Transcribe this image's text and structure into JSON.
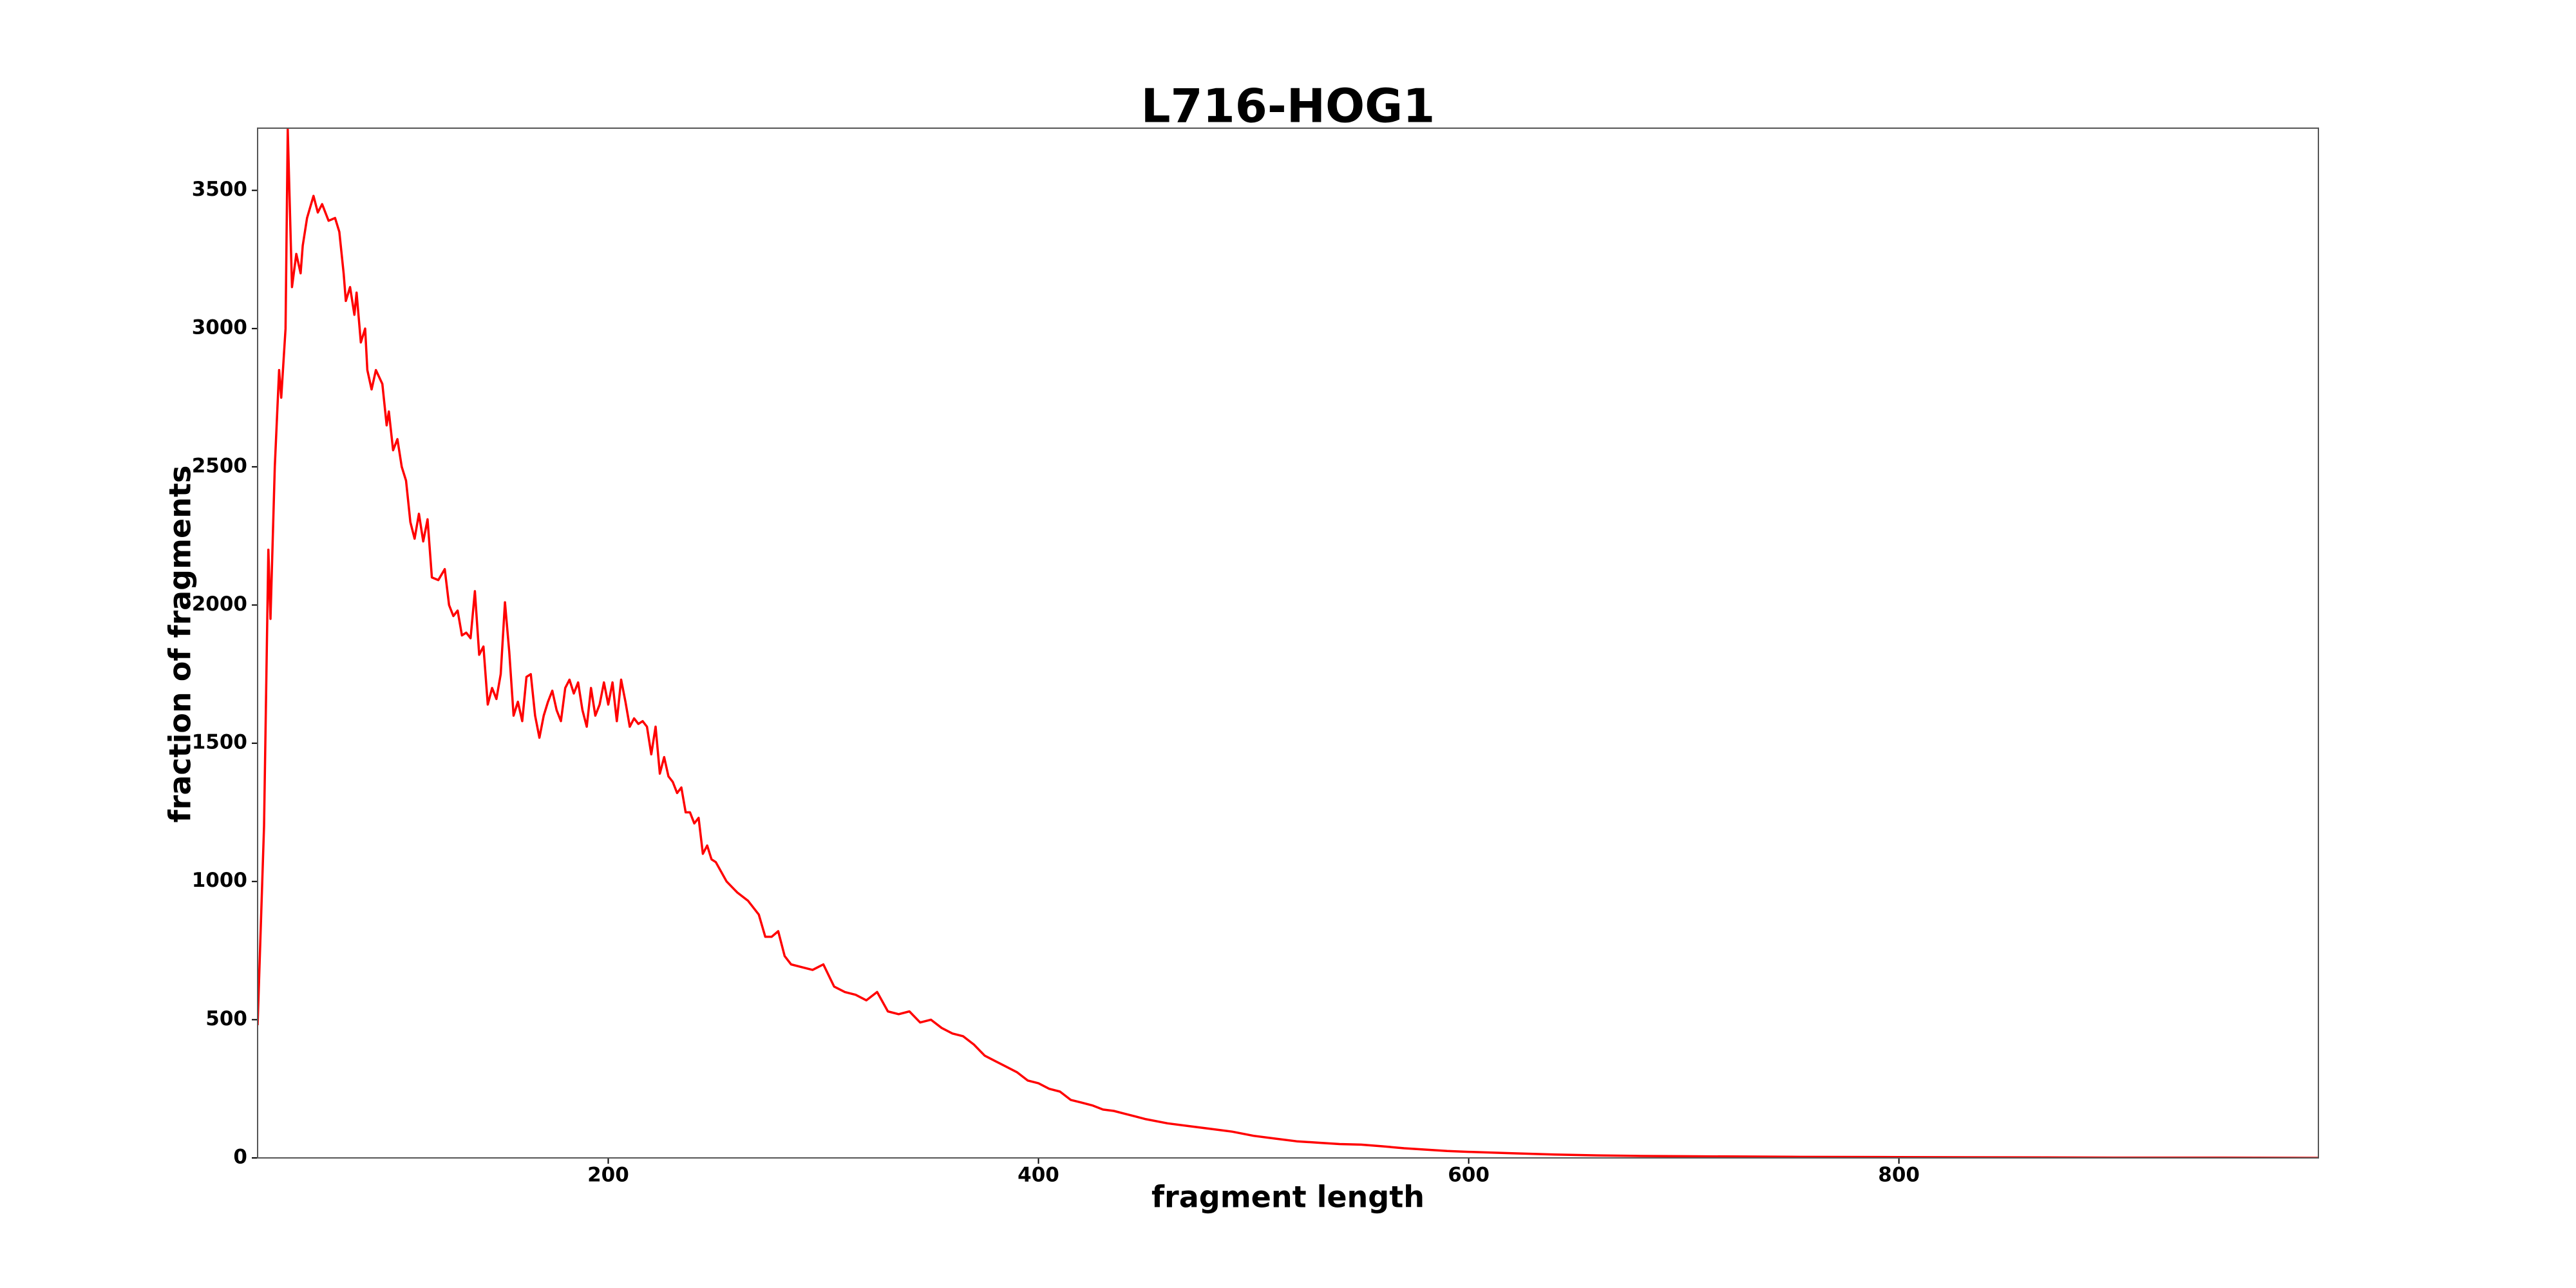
{
  "chart_data": {
    "type": "line",
    "title": "L716-HOG1",
    "xlabel": "fragment length",
    "ylabel": "fraction of fragments",
    "color": "#ff0000",
    "x": [
      37,
      40,
      42,
      43,
      45,
      47,
      48,
      50,
      51,
      53,
      55,
      57,
      58,
      60,
      63,
      65,
      67,
      70,
      73,
      75,
      77,
      78,
      80,
      82,
      83,
      85,
      87,
      88,
      90,
      92,
      95,
      97,
      98,
      100,
      102,
      104,
      106,
      108,
      110,
      112,
      114,
      116,
      118,
      121,
      124,
      126,
      128,
      130,
      132,
      134,
      136,
      138,
      140,
      142,
      144,
      146,
      148,
      150,
      152,
      154,
      156,
      158,
      160,
      162,
      164,
      166,
      168,
      170,
      172,
      174,
      176,
      178,
      180,
      182,
      184,
      186,
      188,
      190,
      192,
      194,
      196,
      198,
      200,
      202,
      204,
      206,
      208,
      210,
      212,
      214,
      216,
      218,
      220,
      222,
      224,
      226,
      228,
      230,
      232,
      234,
      236,
      238,
      240,
      242,
      244,
      246,
      248,
      250,
      255,
      260,
      265,
      270,
      273,
      276,
      279,
      282,
      285,
      290,
      295,
      300,
      305,
      310,
      315,
      320,
      325,
      330,
      335,
      340,
      345,
      350,
      355,
      360,
      365,
      370,
      375,
      380,
      385,
      390,
      395,
      400,
      405,
      410,
      415,
      420,
      425,
      430,
      435,
      440,
      445,
      450,
      460,
      470,
      480,
      490,
      500,
      510,
      520,
      530,
      540,
      550,
      560,
      570,
      580,
      590,
      600,
      620,
      640,
      660,
      680,
      700,
      750,
      800,
      850,
      900,
      950,
      995
    ],
    "values": [
      480,
      1200,
      2200,
      1950,
      2500,
      2850,
      2750,
      3000,
      3720,
      3150,
      3270,
      3200,
      3300,
      3400,
      3480,
      3420,
      3450,
      3390,
      3400,
      3350,
      3200,
      3100,
      3150,
      3050,
      3130,
      2950,
      3000,
      2850,
      2780,
      2850,
      2800,
      2650,
      2700,
      2560,
      2600,
      2500,
      2450,
      2300,
      2240,
      2330,
      2230,
      2310,
      2100,
      2090,
      2130,
      2000,
      1960,
      1980,
      1890,
      1900,
      1880,
      2050,
      1820,
      1850,
      1640,
      1700,
      1660,
      1750,
      2010,
      1830,
      1600,
      1650,
      1580,
      1740,
      1750,
      1600,
      1520,
      1600,
      1650,
      1690,
      1620,
      1580,
      1700,
      1730,
      1680,
      1720,
      1620,
      1560,
      1700,
      1600,
      1640,
      1720,
      1640,
      1720,
      1580,
      1730,
      1650,
      1560,
      1590,
      1570,
      1580,
      1560,
      1460,
      1560,
      1390,
      1450,
      1380,
      1360,
      1320,
      1340,
      1250,
      1250,
      1210,
      1230,
      1100,
      1130,
      1080,
      1070,
      1000,
      960,
      930,
      880,
      800,
      800,
      820,
      730,
      700,
      690,
      680,
      700,
      620,
      600,
      590,
      570,
      600,
      530,
      520,
      530,
      490,
      500,
      470,
      450,
      440,
      410,
      370,
      350,
      330,
      310,
      280,
      270,
      250,
      240,
      210,
      200,
      190,
      175,
      170,
      160,
      150,
      140,
      125,
      115,
      105,
      95,
      80,
      70,
      60,
      55,
      50,
      48,
      42,
      35,
      30,
      25,
      22,
      17,
      12,
      9,
      7,
      6,
      4,
      3,
      2,
      1,
      1,
      0
    ],
    "xlim": [
      37,
      995
    ],
    "ylim": [
      0,
      3725
    ],
    "xticks": [
      200,
      400,
      600,
      800
    ],
    "yticks": [
      0,
      500,
      1000,
      1500,
      2000,
      2500,
      3000,
      3500
    ]
  }
}
